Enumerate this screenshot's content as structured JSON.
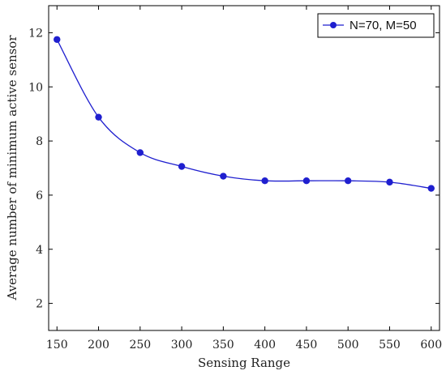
{
  "chart_data": {
    "type": "line",
    "title": "",
    "xlabel": "Sensing Range",
    "ylabel": "Average number of minimum active sensor",
    "x": [
      150,
      200,
      250,
      300,
      350,
      400,
      450,
      500,
      550,
      600
    ],
    "series": [
      {
        "name": "N=70, M=50",
        "color": "#1f1fcf",
        "marker": "circle",
        "values": [
          11.75,
          8.88,
          7.57,
          7.06,
          6.7,
          6.53,
          6.53,
          6.53,
          6.48,
          6.25
        ]
      }
    ],
    "xticks": [
      "150",
      "200",
      "250",
      "300",
      "350",
      "400",
      "450",
      "500",
      "550",
      "600"
    ],
    "yticks": [
      "2",
      "4",
      "6",
      "8",
      "10",
      "12"
    ],
    "xlim": [
      140,
      610
    ],
    "ylim": [
      1,
      13
    ],
    "grid": false,
    "legend_position": "top-right"
  }
}
